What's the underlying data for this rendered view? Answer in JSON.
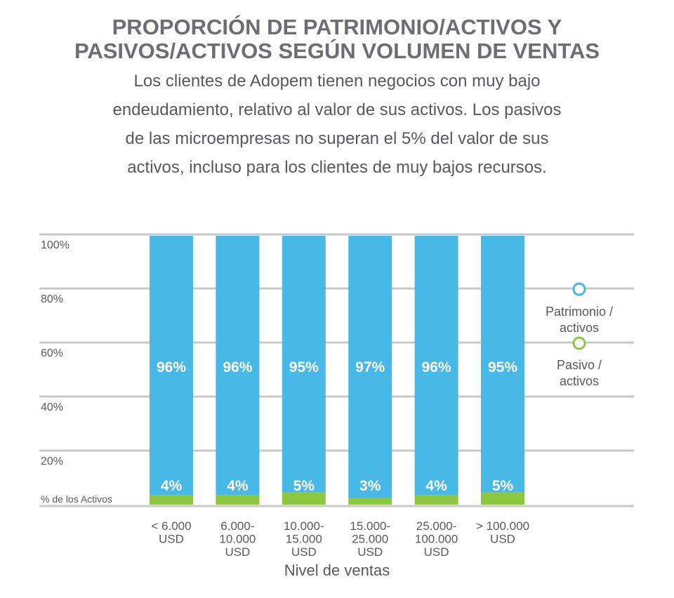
{
  "title_lines": [
    "PROPORCIÓN DE PATRIMONIO/ACTIVOS Y",
    "PASIVOS/ACTIVOS SEGÚN VOLUMEN DE VENTAS"
  ],
  "subtitle_lines": [
    "Los clientes de Adopem tienen negocios con muy bajo",
    "endeudamiento, relativo al valor de sus activos. Los pasivos",
    "de las microempresas no superan el 5% del valor de sus",
    "activos, incluso para los clientes de muy bajos recursos."
  ],
  "colors": {
    "patrimonio": "#48b8e7",
    "pasivo": "#8dc63f",
    "grid": "#c8c8c8",
    "text": "#58595b"
  },
  "chart_data": {
    "type": "bar",
    "stacked": true,
    "categories": [
      [
        "< 6.000",
        "USD"
      ],
      [
        "6.000-",
        "10.000",
        "USD"
      ],
      [
        "10.000-",
        "15.000",
        "USD"
      ],
      [
        "15.000-",
        "25.000",
        "USD"
      ],
      [
        "25.000-",
        "100.000",
        "USD"
      ],
      [
        "> 100.000",
        "USD"
      ]
    ],
    "series": [
      {
        "name": "Pasivo / activos",
        "legend_lines": [
          "Pasivo /",
          "activos"
        ],
        "color": "#8dc63f",
        "values": [
          4,
          4,
          5,
          3,
          4,
          5
        ],
        "labels": [
          "4%",
          "4%",
          "5%",
          "3%",
          "4%",
          "5%"
        ]
      },
      {
        "name": "Patrimonio / activos",
        "legend_lines": [
          "Patrimonio /",
          "activos"
        ],
        "color": "#48b8e7",
        "values": [
          96,
          96,
          95,
          97,
          96,
          95
        ],
        "labels": [
          "96%",
          "96%",
          "95%",
          "97%",
          "96%",
          "95%"
        ]
      }
    ],
    "ylim": [
      0,
      100
    ],
    "yticks": [
      20,
      40,
      60,
      80,
      100
    ],
    "ytick_labels": [
      "20%",
      "40%",
      "60%",
      "80%",
      "100%"
    ],
    "ylabel": "% de los Activos",
    "xlabel": "Nivel de ventas",
    "grid": true,
    "legend_position": "right"
  }
}
